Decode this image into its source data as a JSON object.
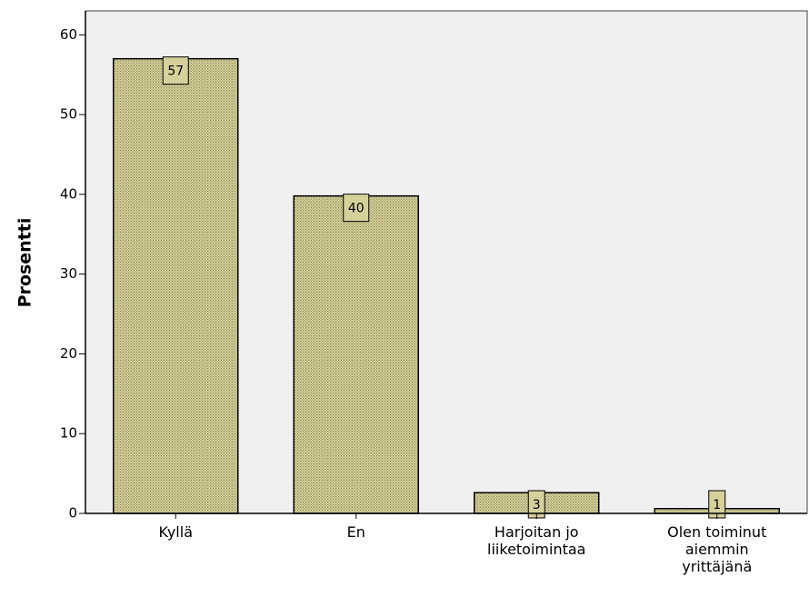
{
  "chart_data": {
    "type": "bar",
    "categories": [
      [
        "Kyllä"
      ],
      [
        "En"
      ],
      [
        "Harjoitan jo",
        "liiketoimintaa"
      ],
      [
        "Olen toiminut",
        "aiemmin",
        "yrittäjänä"
      ]
    ],
    "values": [
      57,
      40,
      3,
      1
    ],
    "bar_heights": [
      57.0,
      39.8,
      2.6,
      0.6
    ],
    "data_labels": [
      "57",
      "40",
      "3",
      "1"
    ],
    "ylabel": "Prosentti",
    "xlabel": "",
    "ylim": [
      0,
      63
    ],
    "yticks": [
      0,
      10,
      20,
      30,
      40,
      50,
      60
    ],
    "grid": false,
    "colors": {
      "plot_background": "#f0f0f0",
      "bar_fill": "#d3ce97",
      "bar_pattern": "#8a8458",
      "bar_stroke": "#000000",
      "label_box": "#d6d19a"
    }
  }
}
